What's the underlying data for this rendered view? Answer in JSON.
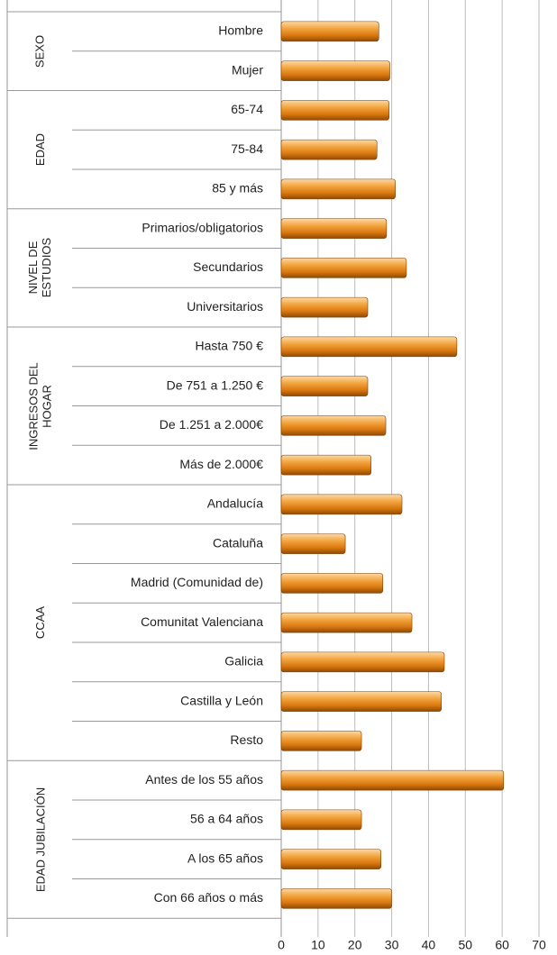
{
  "chart_data": {
    "type": "bar",
    "orientation": "horizontal",
    "groups": [
      {
        "name": "SEXO",
        "categories": [
          "Hombre",
          "Mujer"
        ],
        "values": [
          26.5,
          29.5
        ]
      },
      {
        "name": "EDAD",
        "categories": [
          "65-74",
          "75-84",
          "85 y más"
        ],
        "values": [
          29.3,
          26,
          31
        ]
      },
      {
        "name": "NIVEL DE ESTUDIOS",
        "categories": [
          "Primarios/obligatorios",
          "Secundarios",
          "Universitarios"
        ],
        "values": [
          28.6,
          34,
          23.5
        ]
      },
      {
        "name": "INGRESOS DEL HOGAR",
        "categories": [
          "Hasta 750 €",
          "De 751 a 1.250 €",
          "De 1.251 a 2.000€",
          "Más de 2.000€"
        ],
        "values": [
          47.7,
          23.5,
          28.4,
          24.4
        ]
      },
      {
        "name": "CCAA",
        "categories": [
          "Andalucía",
          "Cataluña",
          "Madrid (Comunidad de)",
          "Comunitat Valenciana",
          "Galicia",
          "Castilla y León",
          "Resto"
        ],
        "values": [
          32.8,
          17.4,
          27.6,
          35.5,
          44.3,
          43.5,
          21.8
        ]
      },
      {
        "name": "EDAD JUBILACIÓN",
        "categories": [
          "Antes de los 55 años",
          "56  a 64 años",
          "A los 65 años",
          "Con 66 años o más"
        ],
        "values": [
          60.4,
          21.8,
          27.1,
          30
        ]
      }
    ],
    "color": "#e8891d",
    "xlim": [
      0,
      70
    ],
    "xticks": [
      0,
      10,
      20,
      30,
      40,
      50,
      60,
      70
    ],
    "grid": true
  }
}
